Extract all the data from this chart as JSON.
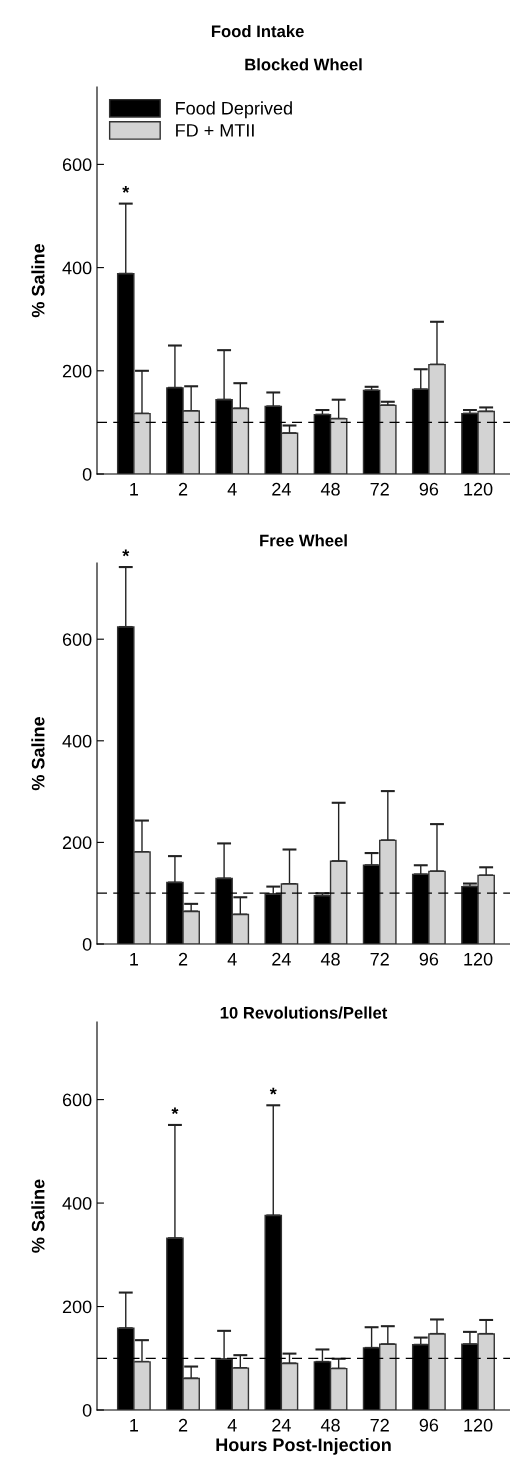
{
  "chart_data": [
    {
      "type": "bar",
      "title": "Food Intake",
      "subtitle": "Blocked Wheel",
      "ylabel": "% Saline",
      "categories": [
        "1",
        "2",
        "4",
        "24",
        "48",
        "72",
        "96",
        "120"
      ],
      "ylim": [
        0,
        750
      ],
      "yticks": [
        0,
        200,
        400,
        600
      ],
      "legend": "top left",
      "grid": false,
      "series": [
        {
          "name": "Food Deprived",
          "color": "#000000",
          "values": [
            388,
            167,
            144,
            131,
            115,
            162,
            164,
            117
          ],
          "errors": [
            [
              388,
              524
            ],
            [
              167,
              249
            ],
            [
              144,
              240
            ],
            [
              131,
              158
            ],
            [
              115,
              124
            ],
            [
              162,
              169
            ],
            [
              164,
              203
            ],
            [
              117,
              124
            ]
          ]
        },
        {
          "name": "FD + MTII",
          "color": "#d3d3d3",
          "values": [
            117,
            122,
            127,
            79,
            107,
            133,
            212,
            121
          ],
          "errors": [
            [
              117,
              200
            ],
            [
              122,
              170
            ],
            [
              127,
              176
            ],
            [
              79,
              94
            ],
            [
              107,
              144
            ],
            [
              133,
              140
            ],
            [
              212,
              295
            ],
            [
              121,
              129
            ]
          ]
        }
      ],
      "ref_lines": [
        {
          "axis": "y",
          "value": 100,
          "line_style": "dashed"
        }
      ],
      "annotations": [
        {
          "text": "*",
          "x": "1",
          "y": 524
        }
      ]
    },
    {
      "type": "bar",
      "title": "Free Wheel",
      "ylabel": "% Saline",
      "categories": [
        "1",
        "2",
        "4",
        "24",
        "48",
        "72",
        "96",
        "120"
      ],
      "ylim": [
        0,
        750
      ],
      "yticks": [
        0,
        200,
        400,
        600
      ],
      "grid": false,
      "series": [
        {
          "color": "#000000",
          "values": [
            624,
            121,
            129,
            98,
            95,
            155,
            137,
            113
          ],
          "errors": [
            [
              624,
              742
            ],
            [
              121,
              173
            ],
            [
              129,
              198
            ],
            [
              98,
              113
            ],
            [
              95,
              100
            ],
            [
              155,
              179
            ],
            [
              137,
              155
            ],
            [
              113,
              119
            ]
          ]
        },
        {
          "color": "#d3d3d3",
          "values": [
            181,
            64,
            58,
            118,
            163,
            204,
            143,
            135
          ],
          "errors": [
            [
              181,
              243
            ],
            [
              64,
              79
            ],
            [
              58,
              92
            ],
            [
              118,
              186
            ],
            [
              163,
              278
            ],
            [
              204,
              301
            ],
            [
              143,
              236
            ],
            [
              135,
              151
            ]
          ]
        }
      ],
      "ref_lines": [
        {
          "axis": "y",
          "value": 100,
          "line_style": "dashed"
        }
      ],
      "annotations": [
        {
          "text": "*",
          "x": "1",
          "y": 742
        }
      ]
    },
    {
      "type": "bar",
      "title": "10 Revolutions/Pellet",
      "ylabel": "% Saline",
      "xlabel": "Hours Post-Injection",
      "categories": [
        "1",
        "2",
        "4",
        "24",
        "48",
        "72",
        "96",
        "120"
      ],
      "ylim": [
        0,
        750
      ],
      "yticks": [
        0,
        200,
        400,
        600
      ],
      "grid": false,
      "series": [
        {
          "color": "#000000",
          "values": [
            158,
            332,
            98,
            376,
            93,
            120,
            126,
            127
          ],
          "errors": [
            [
              158,
              227
            ],
            [
              332,
              551
            ],
            [
              98,
              153
            ],
            [
              376,
              589
            ],
            [
              93,
              117
            ],
            [
              120,
              160
            ],
            [
              126,
              140
            ],
            [
              127,
              151
            ]
          ]
        },
        {
          "color": "#d3d3d3",
          "values": [
            93,
            61,
            81,
            90,
            80,
            127,
            147,
            147
          ],
          "errors": [
            [
              93,
              135
            ],
            [
              61,
              84
            ],
            [
              81,
              106
            ],
            [
              90,
              109
            ],
            [
              80,
              99
            ],
            [
              127,
              162
            ],
            [
              147,
              175
            ],
            [
              147,
              174
            ]
          ]
        }
      ],
      "ref_lines": [
        {
          "axis": "y",
          "value": 100,
          "line_style": "dashed"
        }
      ],
      "annotations": [
        {
          "text": "*",
          "x": "2",
          "y": 551
        },
        {
          "text": "*",
          "x": "24",
          "y": 589
        }
      ]
    }
  ]
}
